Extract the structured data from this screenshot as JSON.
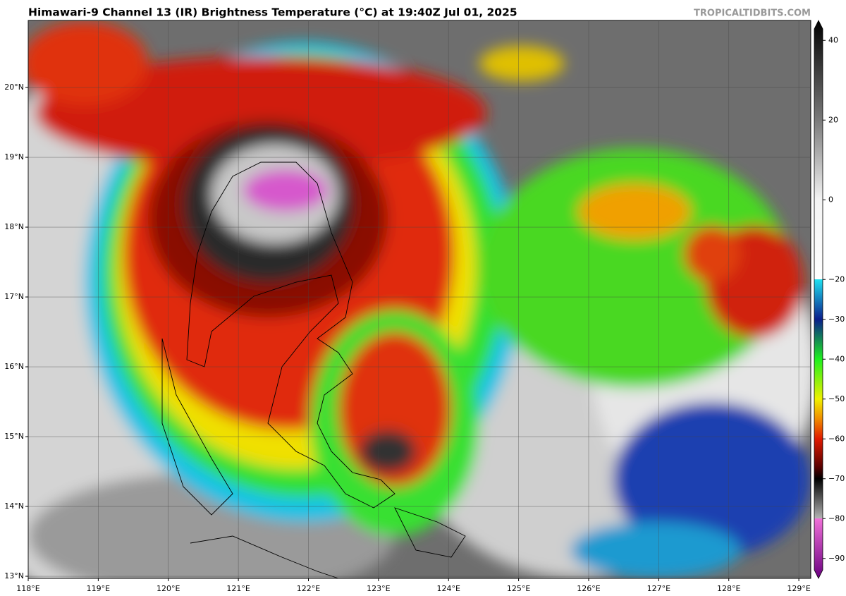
{
  "header": {
    "title": "Himawari-9 Channel 13 (IR) Brightness Temperature (°C) at 19:40Z Jul 01, 2025",
    "source": "TROPICALTIDBITS.COM"
  },
  "map": {
    "xlim": [
      118,
      129.17
    ],
    "ylim": [
      12.97,
      20.96
    ],
    "xticks": [
      {
        "value": 118,
        "label": "118°E"
      },
      {
        "value": 119,
        "label": "119°E"
      },
      {
        "value": 120,
        "label": "120°E"
      },
      {
        "value": 121,
        "label": "121°E"
      },
      {
        "value": 122,
        "label": "122°E"
      },
      {
        "value": 123,
        "label": "123°E"
      },
      {
        "value": 124,
        "label": "124°E"
      },
      {
        "value": 125,
        "label": "125°E"
      },
      {
        "value": 126,
        "label": "126°E"
      },
      {
        "value": 127,
        "label": "127°E"
      },
      {
        "value": 128,
        "label": "128°E"
      },
      {
        "value": 129,
        "label": "129°E"
      }
    ],
    "yticks": [
      {
        "value": 13,
        "label": "13°N"
      },
      {
        "value": 14,
        "label": "14°N"
      },
      {
        "value": 15,
        "label": "15°N"
      },
      {
        "value": 16,
        "label": "16°N"
      },
      {
        "value": 17,
        "label": "17°N"
      },
      {
        "value": 18,
        "label": "18°N"
      },
      {
        "value": 19,
        "label": "19°N"
      },
      {
        "value": 20,
        "label": "20°N"
      }
    ],
    "grid": true
  },
  "colorbar": {
    "lim": [
      -95,
      45
    ],
    "ticks": [
      40,
      20,
      0,
      {
        "value": -20,
        "label": "−20"
      },
      {
        "value": -30,
        "label": "−30"
      },
      {
        "value": -40,
        "label": "−40"
      },
      {
        "value": -50,
        "label": "−50"
      },
      {
        "value": -60,
        "label": "−60"
      },
      {
        "value": -70,
        "label": "−70"
      },
      {
        "value": -80,
        "label": "−80"
      },
      {
        "value": -90,
        "label": "−90"
      }
    ],
    "stops": [
      {
        "value": 45,
        "color": "#000000"
      },
      {
        "value": 20,
        "color": "#7a7a7a"
      },
      {
        "value": 0,
        "color": "#f4f4f4"
      },
      {
        "value": -20,
        "color": "#ffffff"
      },
      {
        "value": -20,
        "color": "#20e0f0"
      },
      {
        "value": -30,
        "color": "#0a1e8c"
      },
      {
        "value": -40,
        "color": "#1ef01e"
      },
      {
        "value": -50,
        "color": "#f0f000"
      },
      {
        "value": -55,
        "color": "#f08c00"
      },
      {
        "value": -60,
        "color": "#e01a00"
      },
      {
        "value": -67,
        "color": "#5a0000"
      },
      {
        "value": -70,
        "color": "#000000"
      },
      {
        "value": -80,
        "color": "#b4b4b4"
      },
      {
        "value": -80,
        "color": "#f070d8"
      },
      {
        "value": -95,
        "color": "#6a0080"
      }
    ]
  }
}
